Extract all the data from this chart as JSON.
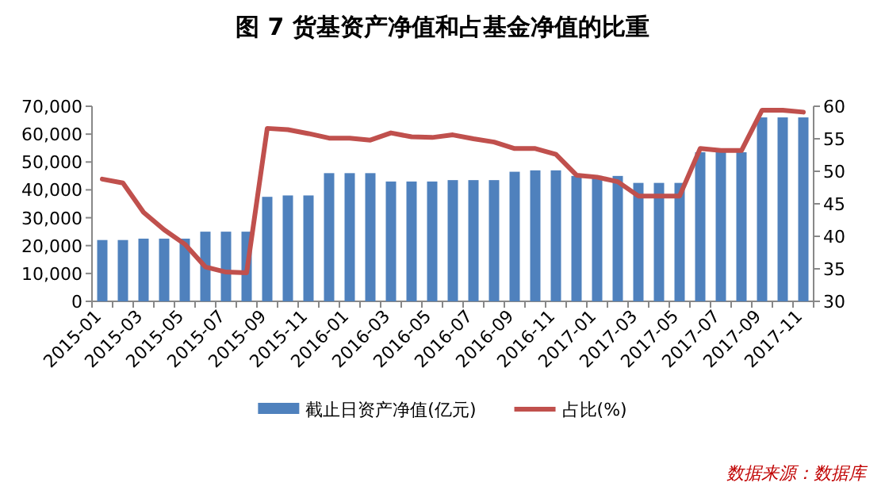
{
  "chart_data": {
    "type": "bar",
    "title": "图 7  货基资产净值和占基金净值的比重",
    "categories": [
      "2015-01",
      null,
      "2015-03",
      null,
      "2015-05",
      null,
      "2015-07",
      null,
      "2015-09",
      null,
      "2015-11",
      null,
      "2016-01",
      null,
      "2016-03",
      null,
      "2016-05",
      null,
      "2016-07",
      null,
      "2016-09",
      null,
      "2016-11",
      null,
      "2017-01",
      null,
      "2017-03",
      null,
      "2017-05",
      null,
      "2017-07",
      null,
      "2017-09",
      null,
      "2017-11"
    ],
    "series": [
      {
        "name": "截止日资产净值(亿元)",
        "color": "#4f81bd",
        "values": [
          22000,
          22000,
          22500,
          22500,
          22500,
          25000,
          25000,
          25000,
          37500,
          38000,
          38000,
          46000,
          46000,
          46000,
          43000,
          43000,
          43000,
          43500,
          43500,
          43500,
          46500,
          47000,
          47000,
          45000,
          45000,
          45000,
          42500,
          42500,
          42500,
          53500,
          53500,
          53500,
          66000,
          66000,
          66000
        ]
      },
      {
        "name": "占比(%)",
        "type": "line",
        "axis": "y2",
        "color": "#c0504d",
        "values": [
          48.8,
          48.2,
          43.7,
          41.0,
          38.8,
          35.3,
          34.5,
          34.4,
          56.6,
          56.4,
          55.8,
          55.1,
          55.1,
          54.8,
          55.9,
          55.3,
          55.2,
          55.6,
          55.0,
          54.5,
          53.5,
          53.5,
          52.6,
          49.4,
          49.1,
          48.4,
          46.2,
          46.2,
          46.2,
          53.5,
          53.2,
          53.2,
          59.4,
          59.4,
          59.1
        ]
      }
    ],
    "ylim": [
      0,
      70000
    ],
    "yticks": [
      {
        "value": 0,
        "label": "0"
      },
      {
        "value": 10000,
        "label": "10,000"
      },
      {
        "value": 20000,
        "label": "20,000"
      },
      {
        "value": 30000,
        "label": "30,000"
      },
      {
        "value": 40000,
        "label": "40,000"
      },
      {
        "value": 50000,
        "label": "50,000"
      },
      {
        "value": 60000,
        "label": "60,000"
      },
      {
        "value": 70000,
        "label": "70,000"
      }
    ],
    "y2lim": [
      30,
      60
    ],
    "y2ticks": [
      30,
      35,
      40,
      45,
      50,
      55,
      60
    ],
    "grid": false,
    "legend": "bottom",
    "marker": "none",
    "annotations": [
      "数据来源：数据库"
    ]
  }
}
